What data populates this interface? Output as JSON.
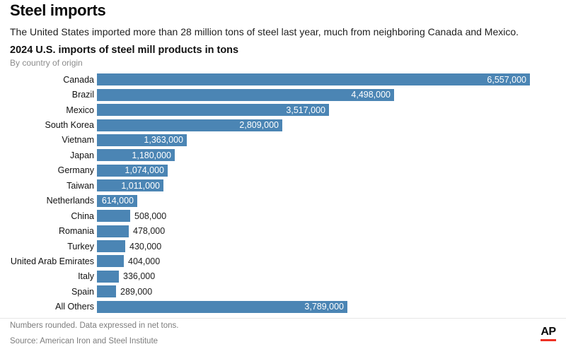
{
  "page": {
    "title": "Steel imports",
    "subtitle": "The United States imported more than 28 million tons of steel last year, much from neighboring Canada and Mexico.",
    "footnote": "Numbers rounded. Data expressed in net tons.",
    "source": "Source: American Iron and Steel Institute",
    "logo_text": "AP",
    "logo_underline_color": "#ee3124"
  },
  "chart_data": {
    "type": "bar",
    "orientation": "horizontal",
    "title": "2024 U.S. imports of steel mill products in tons",
    "subtitle": "By country of origin",
    "categories": [
      "Canada",
      "Brazil",
      "Mexico",
      "South Korea",
      "Vietnam",
      "Japan",
      "Germany",
      "Taiwan",
      "Netherlands",
      "China",
      "Romania",
      "Turkey",
      "United Arab Emirates",
      "Italy",
      "Spain",
      "All Others"
    ],
    "values": [
      6557000,
      4498000,
      3517000,
      2809000,
      1363000,
      1180000,
      1074000,
      1011000,
      614000,
      508000,
      478000,
      430000,
      404000,
      336000,
      289000,
      3789000
    ],
    "value_labels": [
      "6,557,000",
      "4,498,000",
      "3,517,000",
      "2,809,000",
      "1,363,000",
      "1,180,000",
      "1,074,000",
      "1,011,000",
      "614,000",
      "508,000",
      "478,000",
      "430,000",
      "404,000",
      "336,000",
      "289,000",
      "3,789,000"
    ],
    "xlabel": "",
    "ylabel": "",
    "xlim": [
      0,
      6557000
    ],
    "grid": false,
    "legend": false,
    "bar_color": "#4b85b4",
    "inside_label_color": "#ffffff",
    "outside_label_color": "#1c1c1c"
  }
}
